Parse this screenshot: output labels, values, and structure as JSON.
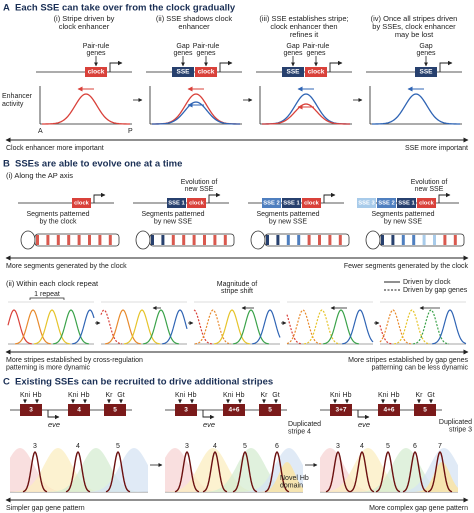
{
  "panel_a": {
    "letter": "A",
    "title": "Each SSE can take over from the clock gradually",
    "steps": [
      {
        "caption": [
          "(i) Stripe driven by",
          "clock enhancer"
        ],
        "inputs": [
          [
            "Pair-rule",
            "genes"
          ]
        ],
        "elements": [
          "clock"
        ]
      },
      {
        "caption": [
          "(ii) SSE shadows clock",
          "enhancer"
        ],
        "inputs": [
          [
            "Gap",
            "genes"
          ],
          [
            "Pair-rule",
            "genes"
          ]
        ],
        "elements": [
          "SSE",
          "clock"
        ]
      },
      {
        "caption": [
          "(iii) SSE establishes stripe;",
          "clock enhancer then",
          "refines it"
        ],
        "inputs": [
          [
            "Gap",
            "genes"
          ],
          [
            "Pair-rule",
            "genes"
          ]
        ],
        "elements": [
          "SSE",
          "clock"
        ]
      },
      {
        "caption": [
          "(iv) Once all stripes driven",
          "by SSEs, clock enhancer",
          "may be lost"
        ],
        "inputs": [
          [
            "Gap",
            "genes"
          ]
        ],
        "elements": [
          "SSE"
        ]
      }
    ],
    "y_label": [
      "Enhancer",
      "activity"
    ],
    "axis_start": "A",
    "axis_end": "P",
    "arrow_left": "Clock enhancer more important",
    "arrow_right": "SSE more important"
  },
  "panel_b": {
    "letter": "B",
    "title": "SSEs are able to evolve one at a time",
    "sub_i": "(i) Along the AP axis",
    "constructs": [
      [
        "clock"
      ],
      [
        "SSE 1",
        "clock"
      ],
      [
        "SSE 2",
        "SSE 1",
        "clock"
      ],
      [
        "SSE 3",
        "SSE 2",
        "SSE 1",
        "clock"
      ]
    ],
    "evolution_labels": [
      [
        "Evolution of",
        "new SSE"
      ],
      [
        "Evolution of",
        "new SSE"
      ]
    ],
    "segment_labels": [
      [
        "Segments patterned",
        "by the clock"
      ],
      [
        "Segments patterned",
        "by new SSE"
      ],
      [
        "Segments patterned",
        "by new SSE"
      ],
      [
        "Segments patterned",
        "by new SSE"
      ]
    ],
    "arrow_left": "More segments generated by the clock",
    "arrow_right": "Fewer segments generated by the clock",
    "sub_ii": "(ii) Within each clock repeat",
    "repeat": "1 repeat",
    "shift": [
      "Magnitude of",
      "stripe shift"
    ],
    "legend": [
      "Driven by clock",
      "Driven by gap genes"
    ],
    "bottom_left": [
      "More stripes established by cross-regulation",
      "patterning is more dynamic"
    ],
    "bottom_right": [
      "More stripes established by gap genes",
      "patterning can be less dynamic"
    ]
  },
  "panel_c": {
    "letter": "C",
    "title": "Existing SSEs can be recruited to drive additional stripes",
    "loci": [
      {
        "factors": [
          [
            "Kni",
            "Hb"
          ],
          [
            "Kni",
            "Hb"
          ],
          [
            "Kr",
            "Gt"
          ]
        ],
        "enhancers": [
          "3",
          "4",
          "5"
        ],
        "gene": "eve",
        "stripes": [
          "3",
          "4",
          "5"
        ]
      },
      {
        "factors": [
          [
            "Kni",
            "Hb"
          ],
          [
            "Kni",
            "Hb"
          ],
          [
            "Kr",
            "Gt"
          ]
        ],
        "enhancers": [
          "3",
          "4+6",
          "5"
        ],
        "gene": "eve",
        "stripes": [
          "3",
          "4",
          "5",
          "6"
        ]
      },
      {
        "factors": [
          [
            "Kni",
            "Hb"
          ],
          [
            "Kni",
            "Hb"
          ],
          [
            "Kr",
            "Gt"
          ]
        ],
        "enhancers": [
          "3+7",
          "4+6",
          "5"
        ],
        "gene": "eve",
        "stripes": [
          "3",
          "4",
          "5",
          "6",
          "7"
        ]
      }
    ],
    "note_dup4": [
      "Duplicated",
      "stripe 4"
    ],
    "note_hb": [
      "Novel Hb",
      "domain"
    ],
    "note_dup3": [
      "Duplicated",
      "stripe 3"
    ],
    "arrow_left": "Simpler gap gene pattern",
    "arrow_right": "More complex gap gene pattern"
  }
}
